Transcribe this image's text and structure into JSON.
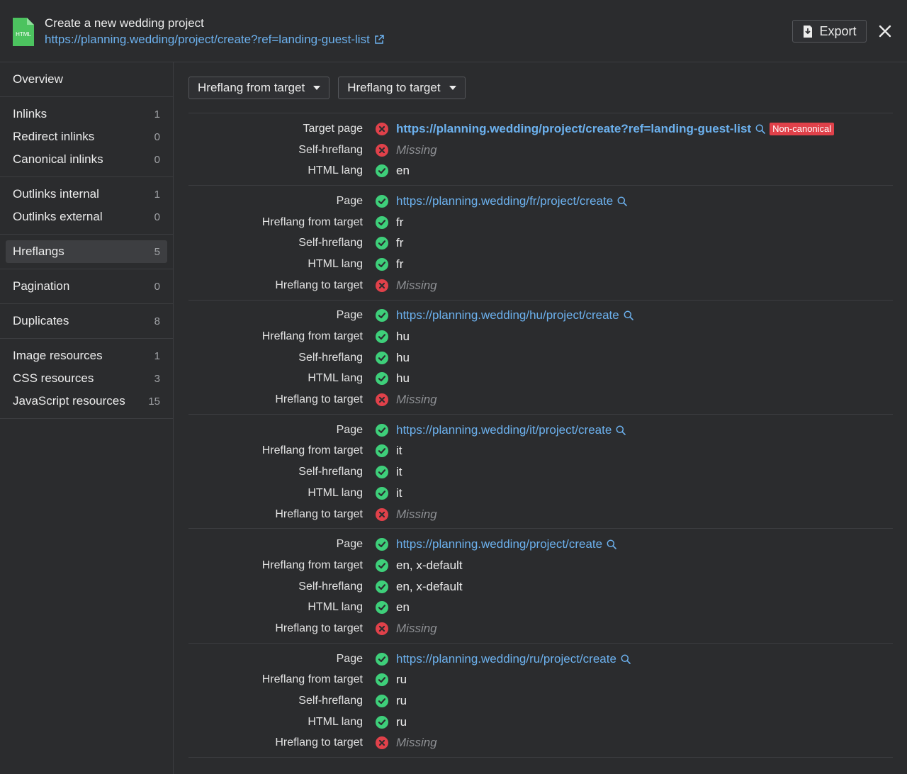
{
  "header": {
    "title": "Create a new wedding project",
    "url": "https://planning.wedding/project/create?ref=landing-guest-list",
    "file_icon_label": "HTML",
    "export_label": "Export"
  },
  "sidebar": {
    "groups": [
      [
        {
          "label": "Overview",
          "count": ""
        }
      ],
      [
        {
          "label": "Inlinks",
          "count": "1"
        },
        {
          "label": "Redirect inlinks",
          "count": "0"
        },
        {
          "label": "Canonical inlinks",
          "count": "0"
        }
      ],
      [
        {
          "label": "Outlinks internal",
          "count": "1"
        },
        {
          "label": "Outlinks external",
          "count": "0"
        }
      ],
      [
        {
          "label": "Hreflangs",
          "count": "5",
          "active": true
        }
      ],
      [
        {
          "label": "Pagination",
          "count": "0"
        }
      ],
      [
        {
          "label": "Duplicates",
          "count": "8"
        }
      ],
      [
        {
          "label": "Image resources",
          "count": "1"
        },
        {
          "label": "CSS resources",
          "count": "3"
        },
        {
          "label": "JavaScript resources",
          "count": "15"
        }
      ]
    ]
  },
  "filters": {
    "from_target": "Hreflang from target",
    "to_target": "Hreflang to target"
  },
  "hreflang_groups": [
    {
      "rows": [
        {
          "label": "Target page",
          "status": "error",
          "value": "https://planning.wedding/project/create?ref=landing-guest-list",
          "type": "link-bold",
          "badge": "Non-canonical"
        },
        {
          "label": "Self-hreflang",
          "status": "error",
          "value": "Missing",
          "type": "missing"
        },
        {
          "label": "HTML lang",
          "status": "ok",
          "value": "en",
          "type": "text"
        }
      ]
    },
    {
      "rows": [
        {
          "label": "Page",
          "status": "ok",
          "value": "https://planning.wedding/fr/project/create",
          "type": "link"
        },
        {
          "label": "Hreflang from target",
          "status": "ok",
          "value": "fr",
          "type": "text"
        },
        {
          "label": "Self-hreflang",
          "status": "ok",
          "value": "fr",
          "type": "text"
        },
        {
          "label": "HTML lang",
          "status": "ok",
          "value": "fr",
          "type": "text"
        },
        {
          "label": "Hreflang to target",
          "status": "error",
          "value": "Missing",
          "type": "missing"
        }
      ]
    },
    {
      "rows": [
        {
          "label": "Page",
          "status": "ok",
          "value": "https://planning.wedding/hu/project/create",
          "type": "link"
        },
        {
          "label": "Hreflang from target",
          "status": "ok",
          "value": "hu",
          "type": "text"
        },
        {
          "label": "Self-hreflang",
          "status": "ok",
          "value": "hu",
          "type": "text"
        },
        {
          "label": "HTML lang",
          "status": "ok",
          "value": "hu",
          "type": "text"
        },
        {
          "label": "Hreflang to target",
          "status": "error",
          "value": "Missing",
          "type": "missing"
        }
      ]
    },
    {
      "rows": [
        {
          "label": "Page",
          "status": "ok",
          "value": "https://planning.wedding/it/project/create",
          "type": "link"
        },
        {
          "label": "Hreflang from target",
          "status": "ok",
          "value": "it",
          "type": "text"
        },
        {
          "label": "Self-hreflang",
          "status": "ok",
          "value": "it",
          "type": "text"
        },
        {
          "label": "HTML lang",
          "status": "ok",
          "value": "it",
          "type": "text"
        },
        {
          "label": "Hreflang to target",
          "status": "error",
          "value": "Missing",
          "type": "missing"
        }
      ]
    },
    {
      "rows": [
        {
          "label": "Page",
          "status": "ok",
          "value": "https://planning.wedding/project/create",
          "type": "link"
        },
        {
          "label": "Hreflang from target",
          "status": "ok",
          "value": "en, x-default",
          "type": "text"
        },
        {
          "label": "Self-hreflang",
          "status": "ok",
          "value": "en, x-default",
          "type": "text"
        },
        {
          "label": "HTML lang",
          "status": "ok",
          "value": "en",
          "type": "text"
        },
        {
          "label": "Hreflang to target",
          "status": "error",
          "value": "Missing",
          "type": "missing"
        }
      ]
    },
    {
      "rows": [
        {
          "label": "Page",
          "status": "ok",
          "value": "https://planning.wedding/ru/project/create",
          "type": "link"
        },
        {
          "label": "Hreflang from target",
          "status": "ok",
          "value": "ru",
          "type": "text"
        },
        {
          "label": "Self-hreflang",
          "status": "ok",
          "value": "ru",
          "type": "text"
        },
        {
          "label": "HTML lang",
          "status": "ok",
          "value": "ru",
          "type": "text"
        },
        {
          "label": "Hreflang to target",
          "status": "error",
          "value": "Missing",
          "type": "missing"
        }
      ]
    }
  ],
  "colors": {
    "ok": "#3ecf7a",
    "error": "#e0414a",
    "link": "#6cb1ee",
    "file_icon": "#4cc35f"
  },
  "icons": {
    "file": "html-file-icon",
    "external": "external-link-icon",
    "export": "download-icon",
    "close": "close-icon",
    "search": "search-icon",
    "ok": "check-circle-icon",
    "error": "x-circle-icon",
    "caret": "caret-down-icon"
  }
}
